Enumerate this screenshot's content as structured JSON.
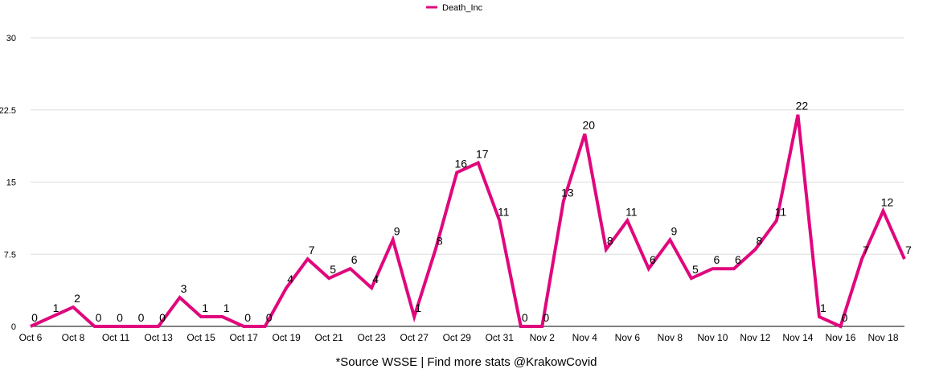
{
  "chart_data": {
    "type": "line",
    "categories": [
      "Oct 6",
      null,
      "Oct 8",
      null,
      "Oct 11",
      null,
      "Oct 13",
      null,
      "Oct 15",
      null,
      "Oct 17",
      null,
      "Oct 19",
      null,
      "Oct 21",
      null,
      "Oct 23",
      null,
      "Oct 27",
      null,
      "Oct 29",
      null,
      "Oct 31",
      null,
      "Nov 2",
      null,
      "Nov 4",
      null,
      "Nov 6",
      null,
      "Nov 8",
      null,
      "Nov 10",
      null,
      "Nov 12",
      null,
      "Nov 14",
      null,
      "Nov 16",
      null,
      "Nov 18",
      null
    ],
    "series": [
      {
        "name": "Death_Inc",
        "color": "#e0077d",
        "values": [
          0,
          1,
          2,
          0,
          0,
          0,
          0,
          3,
          1,
          1,
          0,
          0,
          4,
          7,
          5,
          6,
          4,
          9,
          1,
          8,
          16,
          17,
          11,
          0,
          0,
          13,
          20,
          8,
          11,
          6,
          9,
          5,
          6,
          6,
          8,
          11,
          22,
          1,
          0,
          7,
          12,
          7
        ]
      }
    ],
    "ylim": [
      0,
      30
    ],
    "yticks": [
      0,
      7.5,
      15,
      22.5,
      30
    ],
    "grid": true,
    "legend": "top",
    "footnote": "*Source WSSE | Find more stats @KrakowCovid"
  }
}
